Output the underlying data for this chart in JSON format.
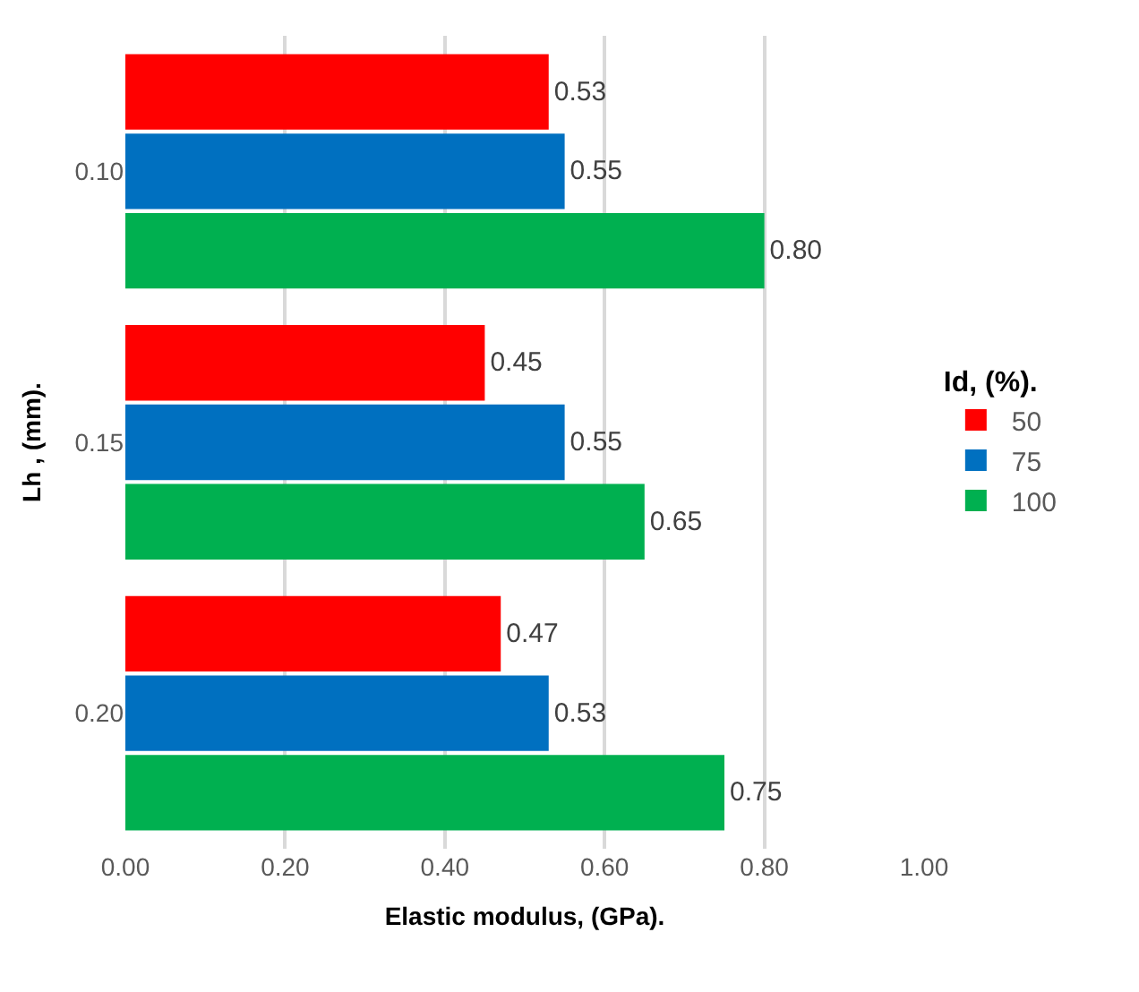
{
  "chart_data": {
    "type": "bar",
    "orientation": "horizontal",
    "xlabel": "Elastic modulus, (GPa).",
    "ylabel": "Lh , (mm).",
    "legend_title": "Id, (%).",
    "categories": [
      "0.10",
      "0.15",
      "0.20"
    ],
    "series": [
      {
        "name": "50",
        "color": "#ff0000",
        "values": [
          0.53,
          0.45,
          0.47
        ],
        "value_labels": [
          "0.53",
          "0.45",
          "0.47"
        ]
      },
      {
        "name": "75",
        "color": "#0070c0",
        "values": [
          0.55,
          0.55,
          0.53
        ],
        "value_labels": [
          "0.55",
          "0.55",
          "0.53"
        ]
      },
      {
        "name": "100",
        "color": "#00b050",
        "values": [
          0.8,
          0.65,
          0.75
        ],
        "value_labels": [
          "0.80",
          "0.65",
          "0.75"
        ]
      }
    ],
    "xlim": [
      0,
      1.0
    ],
    "xticks": [
      {
        "value": 0,
        "label": "0.00"
      },
      {
        "value": 0.2,
        "label": "0.20"
      },
      {
        "value": 0.4,
        "label": "0.40"
      },
      {
        "value": 0.6,
        "label": "0.60"
      },
      {
        "value": 0.8,
        "label": "0.80"
      },
      {
        "value": 1.0,
        "label": "1.00"
      }
    ],
    "grid": "x",
    "legend": "right"
  }
}
